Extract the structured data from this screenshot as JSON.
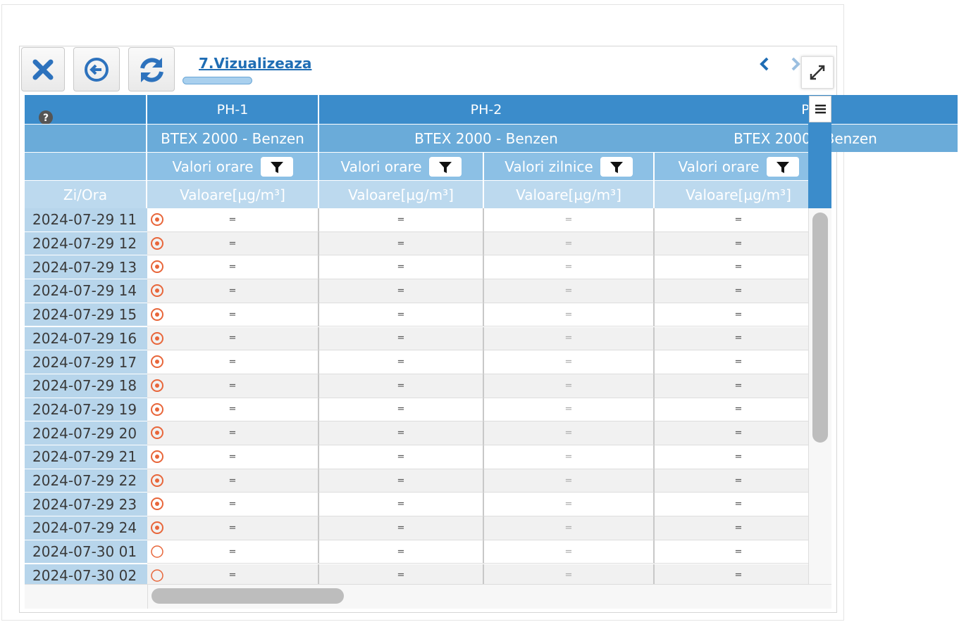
{
  "toolbar": {
    "title": "7.Vizualizeaza"
  },
  "table": {
    "stations": [
      "PH-1",
      "PH-2",
      "P"
    ],
    "instruments": [
      "BTEX 2000 - Benzen",
      "BTEX 2000 - Benzen",
      "BTEX 2000 - Benzen"
    ],
    "measures": [
      "Valori orare",
      "Valori orare",
      "Valori zilnice",
      "Valori orare"
    ],
    "time_header": "Zi/Ora",
    "units": [
      "Valoare[µg/m³]",
      "Valoare[µg/m³]",
      "Valoare[µg/m³]",
      "Valoare[µg/m³]"
    ],
    "rows": [
      {
        "time": "2024-07-29 11",
        "marker": "target",
        "values": [
          "=",
          "=",
          "=",
          "="
        ]
      },
      {
        "time": "2024-07-29 12",
        "marker": "target",
        "values": [
          "=",
          "=",
          "=",
          "="
        ]
      },
      {
        "time": "2024-07-29 13",
        "marker": "target",
        "values": [
          "=",
          "=",
          "=",
          "="
        ]
      },
      {
        "time": "2024-07-29 14",
        "marker": "target",
        "values": [
          "=",
          "=",
          "=",
          "="
        ]
      },
      {
        "time": "2024-07-29 15",
        "marker": "target",
        "values": [
          "=",
          "=",
          "=",
          "="
        ]
      },
      {
        "time": "2024-07-29 16",
        "marker": "target",
        "values": [
          "=",
          "=",
          "=",
          "="
        ]
      },
      {
        "time": "2024-07-29 17",
        "marker": "target",
        "values": [
          "=",
          "=",
          "=",
          "="
        ]
      },
      {
        "time": "2024-07-29 18",
        "marker": "target",
        "values": [
          "=",
          "=",
          "=",
          "="
        ]
      },
      {
        "time": "2024-07-29 19",
        "marker": "target",
        "values": [
          "=",
          "=",
          "=",
          "="
        ]
      },
      {
        "time": "2024-07-29 20",
        "marker": "target",
        "values": [
          "=",
          "=",
          "=",
          "="
        ]
      },
      {
        "time": "2024-07-29 21",
        "marker": "target",
        "values": [
          "=",
          "=",
          "=",
          "="
        ]
      },
      {
        "time": "2024-07-29 22",
        "marker": "target",
        "values": [
          "=",
          "=",
          "=",
          "="
        ]
      },
      {
        "time": "2024-07-29 23",
        "marker": "target",
        "values": [
          "=",
          "=",
          "=",
          "="
        ]
      },
      {
        "time": "2024-07-29 24",
        "marker": "target",
        "values": [
          "=",
          "=",
          "=",
          "="
        ]
      },
      {
        "time": "2024-07-30 01",
        "marker": "empty",
        "values": [
          "=",
          "=",
          "=",
          "="
        ]
      },
      {
        "time": "2024-07-30 02",
        "marker": "empty",
        "values": [
          "=",
          "=",
          "=",
          "="
        ]
      }
    ]
  }
}
